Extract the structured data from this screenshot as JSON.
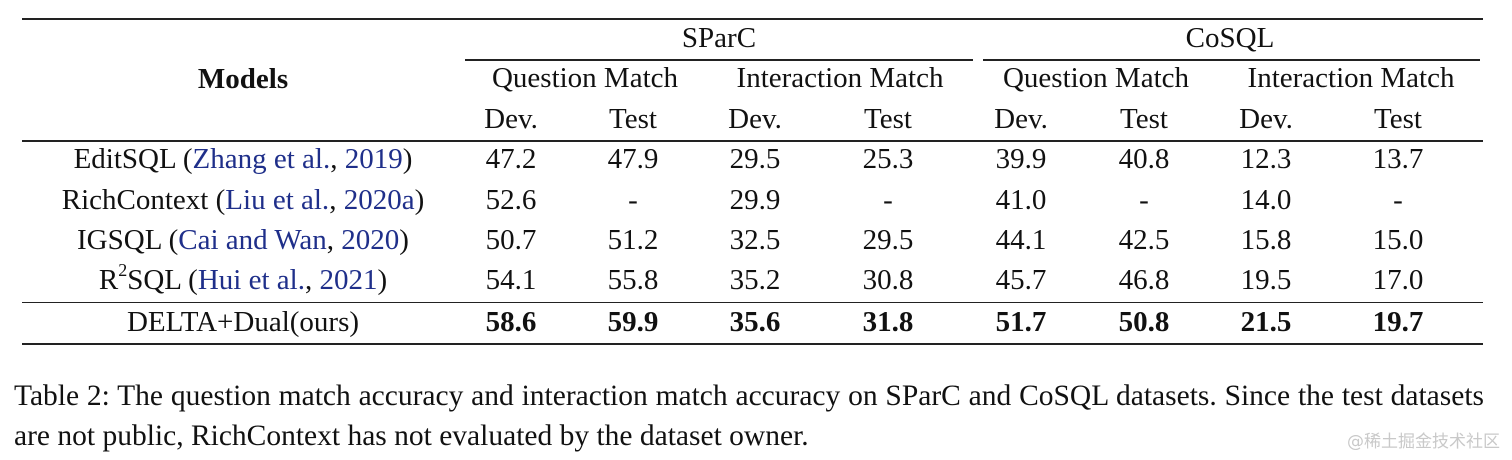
{
  "table": {
    "header": {
      "models": "Models",
      "groups": [
        "SParC",
        "CoSQL"
      ],
      "subgroups": [
        "Question Match",
        "Interaction Match",
        "Question Match",
        "Interaction Match"
      ],
      "cols": [
        "Dev.",
        "Test",
        "Dev.",
        "Test",
        "Dev.",
        "Test",
        "Dev.",
        "Test"
      ]
    },
    "rows": [
      {
        "name": "EditSQL",
        "cite_author": "Zhang et al.",
        "cite_year": "2019",
        "values": [
          "47.2",
          "47.9",
          "29.5",
          "25.3",
          "39.9",
          "40.8",
          "12.3",
          "13.7"
        ]
      },
      {
        "name": "RichContext",
        "cite_author": "Liu et al.",
        "cite_year": "2020a",
        "values": [
          "52.6",
          "-",
          "29.9",
          "-",
          "41.0",
          "-",
          "14.0",
          "-"
        ]
      },
      {
        "name": "IGSQL",
        "cite_author": "Cai and Wan",
        "cite_year": "2020",
        "values": [
          "50.7",
          "51.2",
          "32.5",
          "29.5",
          "44.1",
          "42.5",
          "15.8",
          "15.0"
        ]
      },
      {
        "name_prefix": "R",
        "name_sup": "2",
        "name": "SQL",
        "cite_author": "Hui et al.",
        "cite_year": "2021",
        "values": [
          "54.1",
          "55.8",
          "35.2",
          "30.8",
          "45.7",
          "46.8",
          "19.5",
          "17.0"
        ]
      }
    ],
    "ours": {
      "name": "DELTA+Dual(ours)",
      "values": [
        "58.6",
        "59.9",
        "35.6",
        "31.8",
        "51.7",
        "50.8",
        "21.5",
        "19.7"
      ]
    }
  },
  "caption": "Table 2: The question match accuracy and interaction match accuracy on SParC and CoSQL datasets. Since the test datasets are not public, RichContext has not evaluated by the dataset owner.",
  "watermark": "@稀土掘金技术社区"
}
